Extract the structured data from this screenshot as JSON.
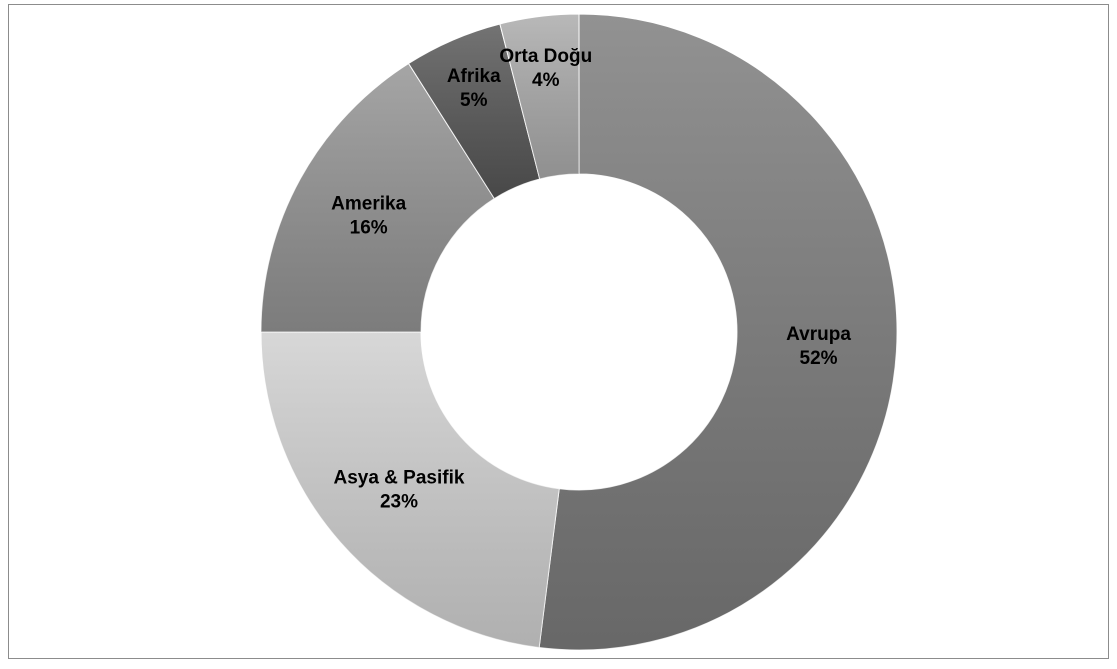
{
  "chart_data": {
    "type": "donut",
    "categories": [
      "Avrupa",
      "Asya & Pasifik",
      "Amerika",
      "Afrika",
      "Orta Doğu"
    ],
    "values": [
      52,
      23,
      16,
      5,
      4
    ],
    "value_labels": [
      "52%",
      "23%",
      "16%",
      "5%",
      "4%"
    ],
    "colors": [
      "#7a7a7a",
      "#cfcfcf",
      "#929292",
      "#555555",
      "#a9a9a9"
    ]
  }
}
